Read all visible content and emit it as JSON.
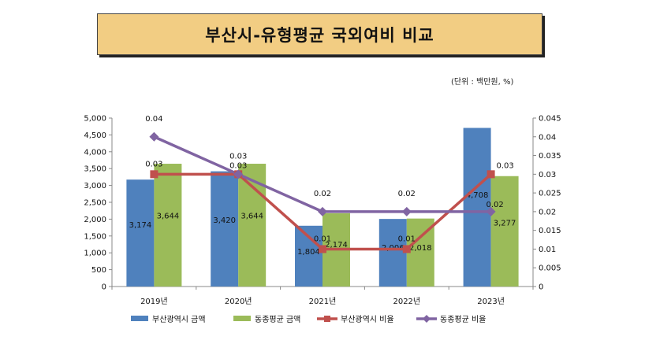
{
  "title": "부산시-유형평균 국외여비 비교",
  "unit_note": "(단위 : 백만원, %)",
  "colors": {
    "bar_busan": "#4f81bd",
    "bar_similar": "#9bbb59",
    "line_busan": "#c0504d",
    "line_similar": "#8064a2",
    "title_bg": "#f2cd83"
  },
  "chart_data": {
    "type": "bar",
    "categories": [
      "2019년",
      "2020년",
      "2021년",
      "2022년",
      "2023년"
    ],
    "series": [
      {
        "name": "부산광역시 금액",
        "kind": "bar",
        "axis": "left",
        "values": [
          3174,
          3420,
          1804,
          2006,
          4708
        ],
        "labels": [
          "3,174",
          "3,420",
          "1,804",
          "2,006",
          "4,708"
        ]
      },
      {
        "name": "동종평균 금액",
        "kind": "bar",
        "axis": "left",
        "values": [
          3644,
          3644,
          2174,
          2018,
          3277
        ],
        "labels": [
          "3,644",
          "3,644",
          "2,174",
          "2,018",
          "3,277"
        ]
      },
      {
        "name": "부산광역시 비율",
        "kind": "line",
        "axis": "right",
        "values": [
          0.03,
          0.03,
          0.01,
          0.01,
          0.03
        ],
        "labels": [
          "0.03",
          "0.03",
          "0.01",
          "0.01",
          "0.03"
        ]
      },
      {
        "name": "동종평균 비율",
        "kind": "line",
        "axis": "right",
        "values": [
          0.04,
          0.03,
          0.02,
          0.02,
          0.02
        ],
        "labels": [
          "0.04",
          "0.03",
          "0.02",
          "0.02",
          "0.02"
        ]
      }
    ],
    "y_left": {
      "min": 0,
      "max": 5000,
      "ticks": [
        "0",
        "500",
        "1,000",
        "1,500",
        "2,000",
        "2,500",
        "3,000",
        "3,500",
        "4,000",
        "4,500",
        "5,000"
      ]
    },
    "y_right": {
      "min": 0,
      "max": 0.045,
      "ticks": [
        "0",
        "0.005",
        "0.01",
        "0.015",
        "0.02",
        "0.025",
        "0.03",
        "0.035",
        "0.04",
        "0.045"
      ]
    },
    "legend_position": "bottom",
    "grid": false
  }
}
